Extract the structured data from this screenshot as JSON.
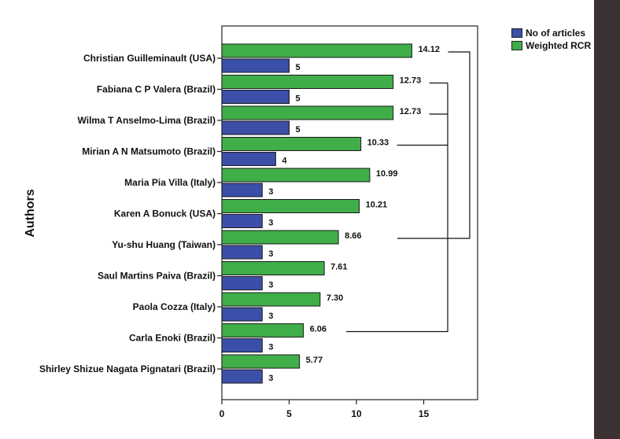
{
  "chart_data": {
    "type": "bar",
    "orientation": "horizontal",
    "ylabel": "Authors",
    "xlabel": "",
    "xlim": [
      0,
      19
    ],
    "xticks": [
      0,
      5,
      10,
      15
    ],
    "categories": [
      "Christian Guilleminault (USA)",
      "Fabiana C P Valera (Brazil)",
      "Wilma T Anselmo-Lima (Brazil)",
      "Mirian A N Matsumoto (Brazil)",
      "Maria Pia Villa (Italy)",
      "Karen A Bonuck (USA)",
      "Yu-shu Huang (Taiwan)",
      "Saul Martins Paiva (Brazil)",
      "Paola Cozza (Italy)",
      "Carla Enoki (Brazil)",
      "Shirley Shizue Nagata Pignatari (Brazil)"
    ],
    "series": [
      {
        "name": "No of articles",
        "color": "#3b4fa8",
        "values": [
          5,
          5,
          5,
          4,
          3,
          3,
          3,
          3,
          3,
          3,
          3
        ],
        "labels": [
          "5",
          "5",
          "5",
          "4",
          "3",
          "3",
          "3",
          "3",
          "3",
          "3",
          "3"
        ]
      },
      {
        "name": "Weighted RCR",
        "color": "#3fae49",
        "values": [
          14.12,
          12.73,
          12.73,
          10.33,
          10.99,
          10.21,
          8.66,
          7.61,
          7.3,
          6.06,
          5.77
        ],
        "labels": [
          "14.12",
          "12.73",
          "12.73",
          "10.33",
          "10.99",
          "10.21",
          "8.66",
          "7.61",
          "7.30",
          "6.06",
          "5.77"
        ]
      }
    ],
    "dendrogram": true,
    "legend_position": "top-right",
    "grid": false
  }
}
